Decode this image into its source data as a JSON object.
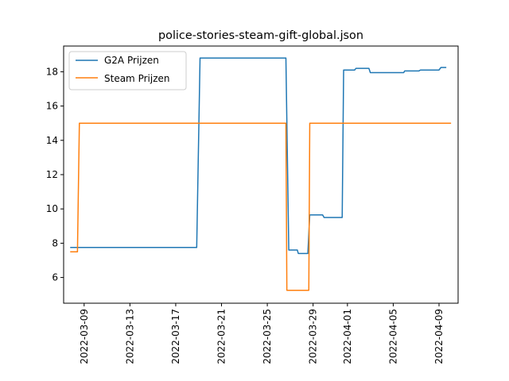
{
  "chart_data": {
    "type": "line",
    "title": "police-stories-steam-gift-global.json",
    "xlabel": "",
    "ylabel": "",
    "x_axis": {
      "kind": "date",
      "tick_labels": [
        "2022-03-09",
        "2022-03-13",
        "2022-03-17",
        "2022-03-21",
        "2022-03-25",
        "2022-03-29",
        "2022-04-01",
        "2022-04-05",
        "2022-04-09"
      ]
    },
    "y_axis": {
      "tick_labels": [
        "6",
        "8",
        "10",
        "12",
        "14",
        "16",
        "18"
      ],
      "ylim": [
        4.5,
        19.5
      ]
    },
    "xlim": [
      "2022-03-07T05:00",
      "2022-04-10T16:00"
    ],
    "grid": false,
    "legend": {
      "placement": "top-left"
    },
    "series": [
      {
        "name": "G2A Prijzen",
        "color": "#1f77b4",
        "points": [
          [
            "2022-03-07T20:00",
            7.75
          ],
          [
            "2022-03-18T20:00",
            7.75
          ],
          [
            "2022-03-19T03:00",
            18.8
          ],
          [
            "2022-03-26T15:00",
            18.8
          ],
          [
            "2022-03-26T21:00",
            7.6
          ],
          [
            "2022-03-27T15:00",
            7.6
          ],
          [
            "2022-03-27T17:00",
            7.4
          ],
          [
            "2022-03-28T13:00",
            7.4
          ],
          [
            "2022-03-28T17:00",
            9.65
          ],
          [
            "2022-03-29T20:00",
            9.65
          ],
          [
            "2022-03-29T23:00",
            9.5
          ],
          [
            "2022-03-31T13:00",
            9.5
          ],
          [
            "2022-03-31T16:00",
            18.1
          ],
          [
            "2022-04-01T15:00",
            18.1
          ],
          [
            "2022-04-01T18:00",
            18.2
          ],
          [
            "2022-04-02T21:00",
            18.2
          ],
          [
            "2022-04-03T00:00",
            17.95
          ],
          [
            "2022-04-05T22:00",
            17.95
          ],
          [
            "2022-04-06T00:00",
            18.05
          ],
          [
            "2022-04-07T06:00",
            18.05
          ],
          [
            "2022-04-07T09:00",
            18.1
          ],
          [
            "2022-04-09T00:00",
            18.1
          ],
          [
            "2022-04-09T04:00",
            18.25
          ],
          [
            "2022-04-09T14:00",
            18.25
          ]
        ]
      },
      {
        "name": "Steam Prijzen",
        "color": "#ff7f0e",
        "points": [
          [
            "2022-03-07T20:00",
            7.5
          ],
          [
            "2022-03-08T10:00",
            7.5
          ],
          [
            "2022-03-08T14:00",
            15.0
          ],
          [
            "2022-03-26T15:00",
            15.0
          ],
          [
            "2022-03-26T17:00",
            5.25
          ],
          [
            "2022-03-28T15:00",
            5.25
          ],
          [
            "2022-03-28T17:00",
            15.0
          ],
          [
            "2022-04-10T00:00",
            15.0
          ]
        ]
      }
    ]
  }
}
